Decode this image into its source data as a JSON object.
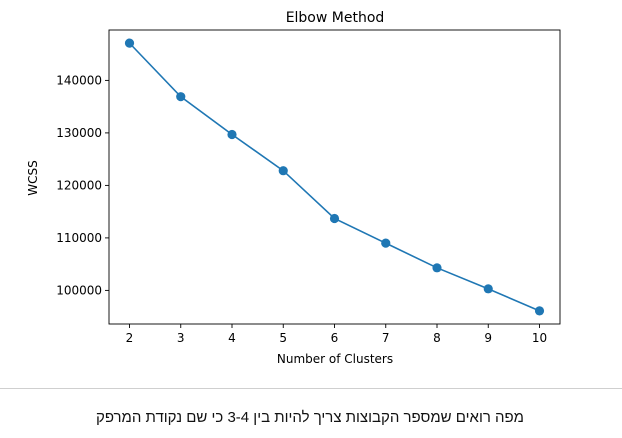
{
  "chart_data": {
    "type": "line",
    "title": "Elbow Method",
    "xlabel": "Number of Clusters",
    "ylabel": "WCSS",
    "x": [
      2,
      3,
      4,
      5,
      6,
      7,
      8,
      9,
      10
    ],
    "xticks": [
      "2",
      "3",
      "4",
      "5",
      "6",
      "7",
      "8",
      "9",
      "10"
    ],
    "series": [
      {
        "values": [
          147100,
          136900,
          129700,
          122800,
          113700,
          109000,
          104300,
          100300,
          96100
        ],
        "color": "#1f77b4",
        "marker": "circle"
      }
    ],
    "yticks": [
      100000,
      110000,
      120000,
      130000,
      140000
    ],
    "ytick_labels": [
      "100000",
      "110000",
      "120000",
      "130000",
      "140000"
    ],
    "xlim": [
      1.6,
      10.4
    ],
    "ylim": [
      93600,
      149600
    ],
    "grid": false,
    "legend": "none"
  },
  "note": {
    "text": "מפה רואים שמספר הקבוצות צריך להיות בין 3-4 כי שם נקודת המרפק"
  }
}
